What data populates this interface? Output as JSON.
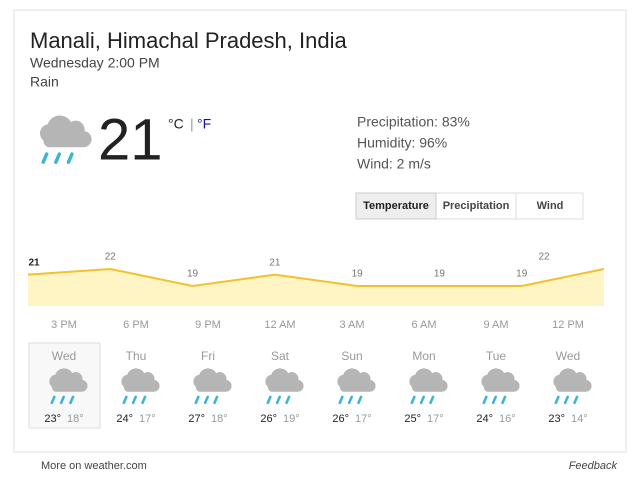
{
  "location": "Manali, Himachal Pradesh, India",
  "datetime": "Wednesday 2:00 PM",
  "condition": "Rain",
  "current": {
    "temperature": 21,
    "unit_c": "°C",
    "separator": "|",
    "unit_f": "°F"
  },
  "details": [
    "Precipitation: 83%",
    "Humidity: 96%",
    "Wind: 2 m/s"
  ],
  "tabs": [
    "Temperature",
    "Precipitation",
    "Wind"
  ],
  "hourly": {
    "times": [
      "3 PM",
      "6 PM",
      "9 PM",
      "12 AM",
      "3 AM",
      "6 AM",
      "9 AM",
      "12 PM"
    ],
    "values": [
      21,
      22,
      19,
      21,
      19,
      19,
      19,
      22
    ]
  },
  "daily": [
    {
      "day": "Wed",
      "high": "23°",
      "low": "18°"
    },
    {
      "day": "Thu",
      "high": "24°",
      "low": "17°"
    },
    {
      "day": "Fri",
      "high": "27°",
      "low": "18°"
    },
    {
      "day": "Sat",
      "high": "26°",
      "low": "19°"
    },
    {
      "day": "Sun",
      "high": "26°",
      "low": "17°"
    },
    {
      "day": "Mon",
      "high": "25°",
      "low": "17°"
    },
    {
      "day": "Tue",
      "high": "24°",
      "low": "16°"
    },
    {
      "day": "Wed",
      "high": "23°",
      "low": "14°"
    }
  ],
  "footer": {
    "more": "More on weather.com",
    "feedback": "Feedback"
  }
}
